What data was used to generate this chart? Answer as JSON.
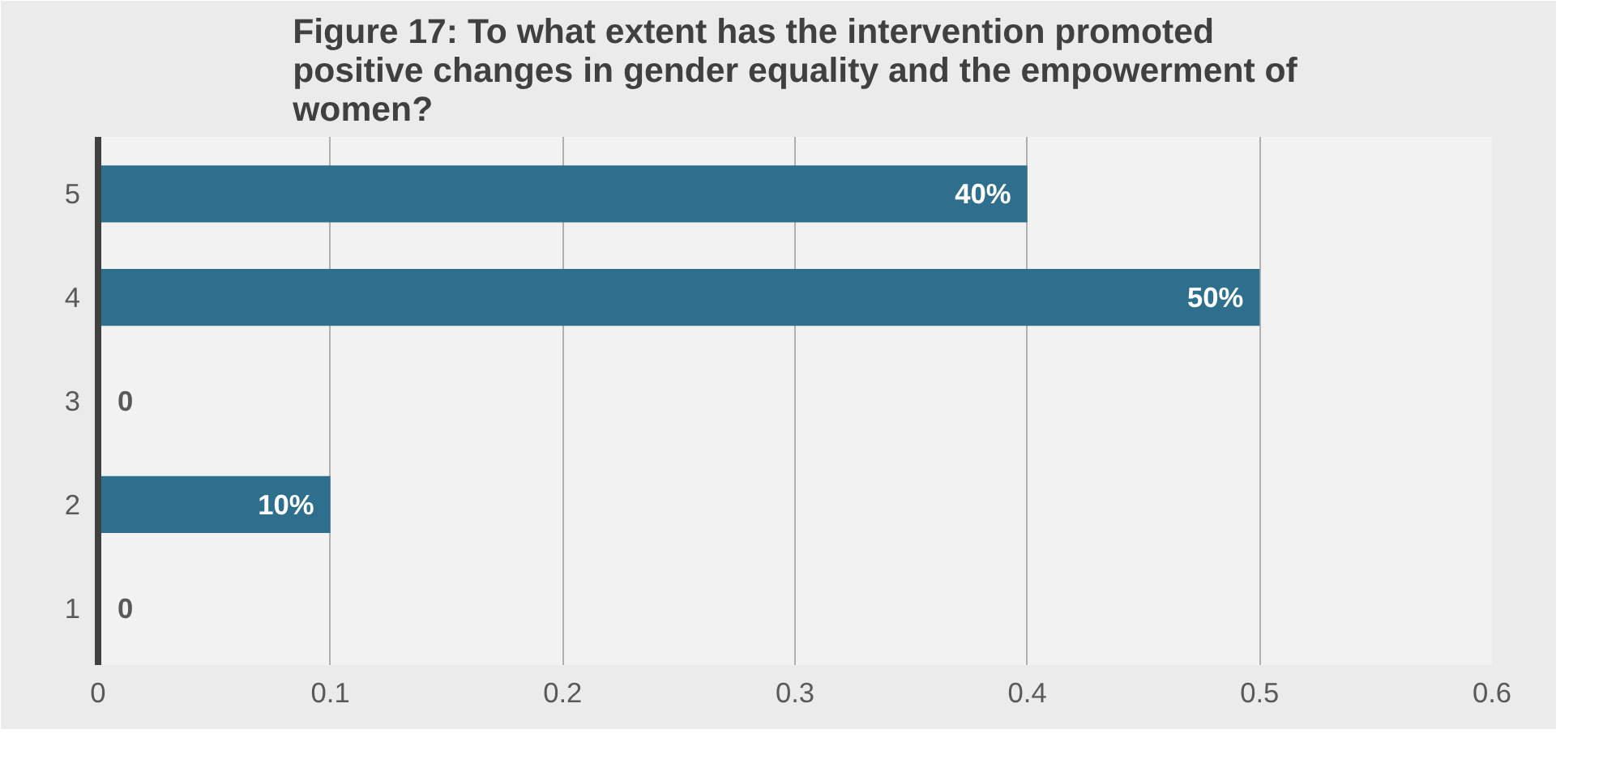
{
  "chart_data": {
    "type": "bar",
    "orientation": "horizontal",
    "title": "Figure 17: To what extent has the intervention promoted positive changes in gender equality and the empowerment of women?",
    "categories": [
      "5",
      "4",
      "3",
      "2",
      "1"
    ],
    "values": [
      0.4,
      0.5,
      0,
      0.1,
      0
    ],
    "value_labels": [
      "40%",
      "50%",
      "0",
      "10%",
      "0"
    ],
    "color": "#2e6f8e",
    "xlim": [
      0,
      0.6
    ],
    "xticks": [
      0,
      0.1,
      0.2,
      0.3,
      0.4,
      0.5,
      0.6
    ],
    "grid": "x"
  }
}
